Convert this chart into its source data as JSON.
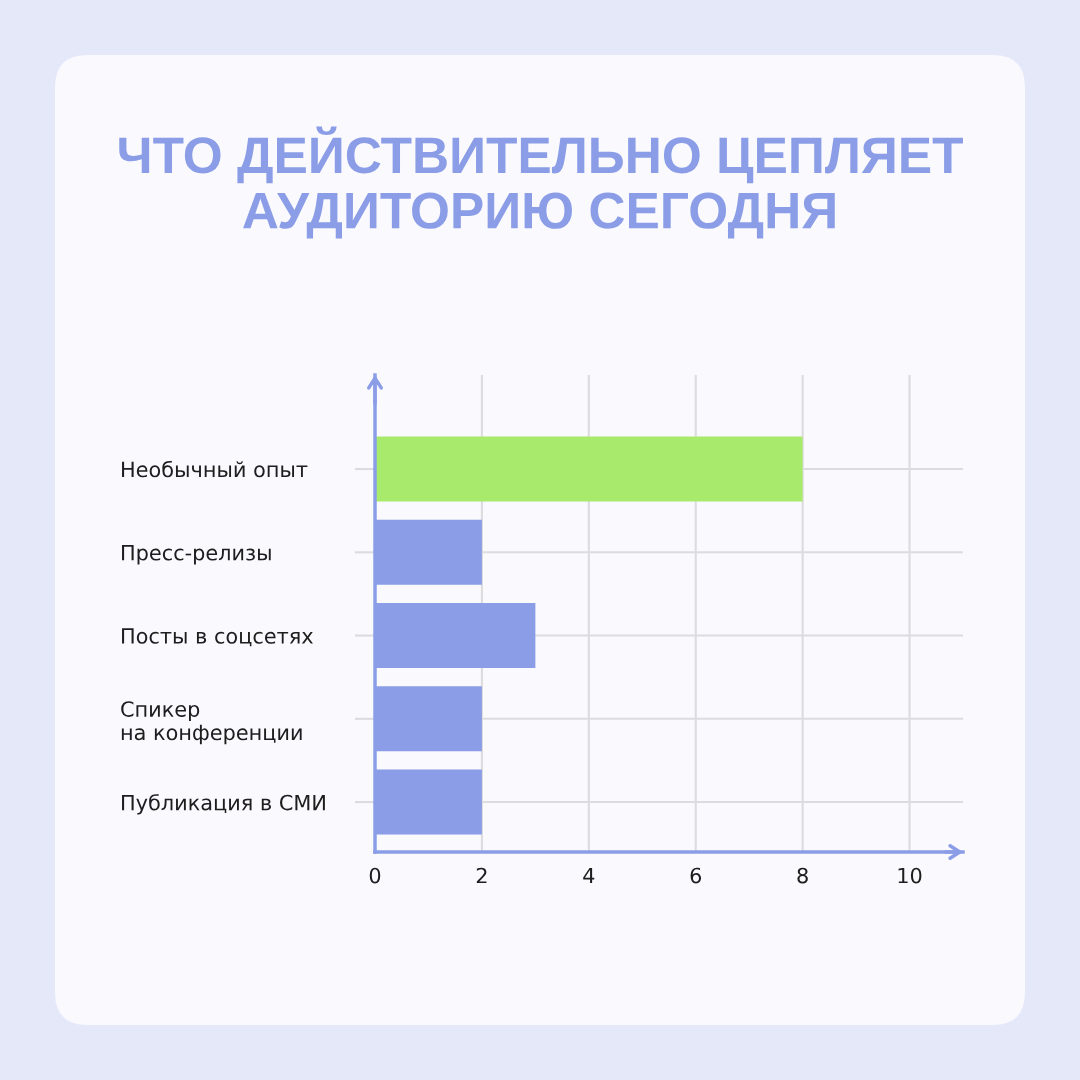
{
  "chart_data": {
    "type": "bar",
    "orientation": "horizontal",
    "title": "ЧТО ДЕЙСТВИТЕЛЬНО ЦЕПЛЯЕТ\nАУДИТОРИЮ СЕГОДНЯ",
    "categories": [
      "Необычный опыт",
      "Пресс-релизы",
      "Посты в соцсетях",
      "Спикер\nна конференции",
      "Публикация в СМИ"
    ],
    "values": [
      8,
      2,
      3,
      2,
      2
    ],
    "colors": [
      "#a8ea6c",
      "#8a9de6",
      "#8a9de6",
      "#8a9de6",
      "#8a9de6"
    ],
    "xlim": [
      0,
      11
    ],
    "xticks": [
      0,
      2,
      4,
      6,
      8,
      10
    ],
    "grid": true,
    "legend": false
  }
}
